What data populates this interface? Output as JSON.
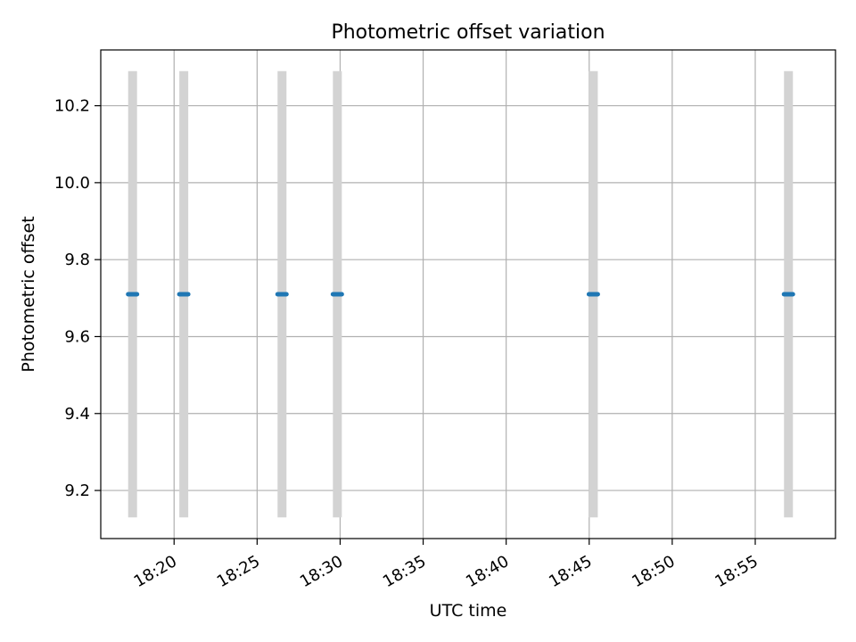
{
  "chart_data": {
    "type": "scatter",
    "title": "Photometric offset variation",
    "xlabel": "UTC time",
    "ylabel": "Photometric offset",
    "x_tick_labels": [
      "18:20",
      "18:25",
      "18:30",
      "18:35",
      "18:40",
      "18:45",
      "18:50",
      "18:55"
    ],
    "y_tick_labels": [
      "9.2",
      "9.4",
      "9.6",
      "9.8",
      "10.0",
      "10.2"
    ],
    "x_ticks": [
      "18:20",
      "18:25",
      "18:30",
      "18:35",
      "18:40",
      "18:45",
      "18:50",
      "18:55"
    ],
    "y_ticks": [
      9.2,
      9.4,
      9.6,
      9.8,
      10.0,
      10.2
    ],
    "xlim": [
      "18:15:35",
      "18:59:50"
    ],
    "ylim": [
      9.075,
      10.345
    ],
    "grid": true,
    "series": [
      {
        "points": [
          {
            "x": "18:17:30",
            "y": 9.71,
            "err_low": 9.13,
            "err_high": 10.29
          },
          {
            "x": "18:20:35",
            "y": 9.71,
            "err_low": 9.13,
            "err_high": 10.29
          },
          {
            "x": "18:26:30",
            "y": 9.71,
            "err_low": 9.13,
            "err_high": 10.29
          },
          {
            "x": "18:29:50",
            "y": 9.71,
            "err_low": 9.13,
            "err_high": 10.29
          },
          {
            "x": "18:45:15",
            "y": 9.71,
            "err_low": 9.13,
            "err_high": 10.29
          },
          {
            "x": "18:57:00",
            "y": 9.71,
            "err_low": 9.13,
            "err_high": 10.29
          }
        ]
      }
    ],
    "colors": {
      "marker": "#1f77b4",
      "errorbar": "#d3d3d3",
      "grid": "#b0b0b0",
      "axes": "#000000"
    }
  }
}
